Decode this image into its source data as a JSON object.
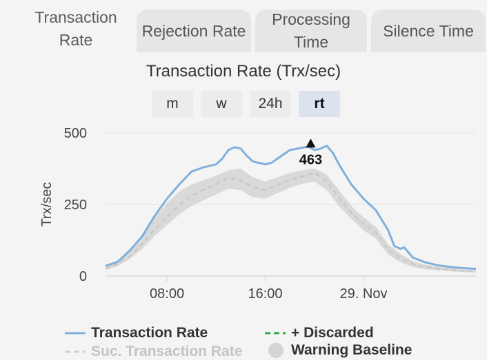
{
  "tabs": [
    {
      "label_lines": [
        "Transaction",
        "Rate"
      ],
      "active": true
    },
    {
      "label_lines": [
        "Rejection Rate"
      ],
      "active": false
    },
    {
      "label_lines": [
        "Processing",
        "Time"
      ],
      "active": false
    },
    {
      "label_lines": [
        "Silence Time"
      ],
      "active": false
    }
  ],
  "ranges": [
    {
      "label": "m",
      "active": false
    },
    {
      "label": "w",
      "active": false
    },
    {
      "label": "24h",
      "active": false
    },
    {
      "label": "rt",
      "active": true
    }
  ],
  "colors": {
    "rate": "#7fb0dc",
    "success": "#c8c8c8",
    "discarded": "#2eaa4a",
    "baseline": "#d4d4d4"
  },
  "chart_data": {
    "type": "line",
    "title": "Transaction Rate (Trx/sec)",
    "ylabel": "Trx/sec",
    "ylim": [
      0,
      500
    ],
    "yticks": [
      0,
      250,
      500
    ],
    "xlim": [
      3,
      33.15
    ],
    "xticks": [
      {
        "value": 8,
        "label": "08:00"
      },
      {
        "value": 16,
        "label": "16:00"
      },
      {
        "value": 24,
        "label": "29. Nov"
      }
    ],
    "peak": {
      "x": 19.7,
      "y": 463,
      "label": "463"
    },
    "series": [
      {
        "name": "Transaction Rate",
        "x": [
          3,
          4,
          5,
          6,
          7,
          8,
          9,
          10,
          11,
          12,
          12.5,
          13,
          13.5,
          14,
          14.5,
          15,
          15.5,
          16,
          16.5,
          17,
          18,
          19,
          19.5,
          20,
          20.5,
          21,
          21.5,
          22,
          23,
          24,
          25,
          26,
          26.5,
          27,
          27.3,
          28,
          29,
          30,
          31,
          32,
          33.15
        ],
        "y": [
          35,
          50,
          90,
          140,
          210,
          270,
          320,
          365,
          380,
          390,
          410,
          440,
          450,
          445,
          420,
          400,
          395,
          390,
          395,
          410,
          440,
          448,
          452,
          440,
          445,
          455,
          430,
          390,
          320,
          270,
          230,
          160,
          105,
          95,
          100,
          65,
          48,
          38,
          32,
          28,
          25
        ]
      },
      {
        "name": "Suc. Transaction Rate",
        "x": [
          3,
          4,
          5,
          6,
          7,
          8,
          9,
          10,
          11,
          12,
          13,
          14,
          15,
          16,
          17,
          18,
          19,
          20,
          21,
          22,
          23,
          24,
          25,
          26,
          27,
          28,
          29,
          30,
          31,
          32,
          33.15
        ],
        "y": [
          25,
          42,
          70,
          112,
          162,
          205,
          248,
          280,
          302,
          322,
          342,
          335,
          310,
          300,
          318,
          335,
          348,
          360,
          332,
          272,
          222,
          182,
          152,
          92,
          62,
          42,
          32,
          26,
          22,
          18,
          16
        ]
      }
    ],
    "baseline_band": {
      "name": "Warning Baseline",
      "x": [
        3,
        4,
        5,
        6,
        7,
        8,
        9,
        10,
        11,
        12,
        13,
        14,
        15,
        16,
        17,
        18,
        19,
        20,
        21,
        22,
        23,
        24,
        25,
        26,
        27,
        28,
        29,
        30,
        31,
        32,
        33.15
      ],
      "upper": [
        32,
        55,
        90,
        140,
        205,
        255,
        295,
        320,
        335,
        350,
        370,
        375,
        345,
        330,
        345,
        360,
        370,
        375,
        355,
        300,
        245,
        205,
        172,
        110,
        78,
        52,
        40,
        33,
        28,
        23,
        20
      ],
      "lower": [
        22,
        35,
        60,
        95,
        140,
        178,
        215,
        245,
        265,
        285,
        305,
        300,
        275,
        270,
        290,
        308,
        322,
        330,
        300,
        245,
        200,
        160,
        130,
        75,
        48,
        32,
        24,
        20,
        17,
        14,
        12
      ]
    },
    "legend": [
      {
        "label": "Transaction Rate",
        "style": "line",
        "dim": false
      },
      {
        "label": "+ Discarded",
        "style": "dash",
        "dim": false
      },
      {
        "label": "Suc. Transaction Rate",
        "style": "dash",
        "dim": true
      },
      {
        "label": "Warning Baseline",
        "style": "circle",
        "dim": false
      }
    ]
  }
}
